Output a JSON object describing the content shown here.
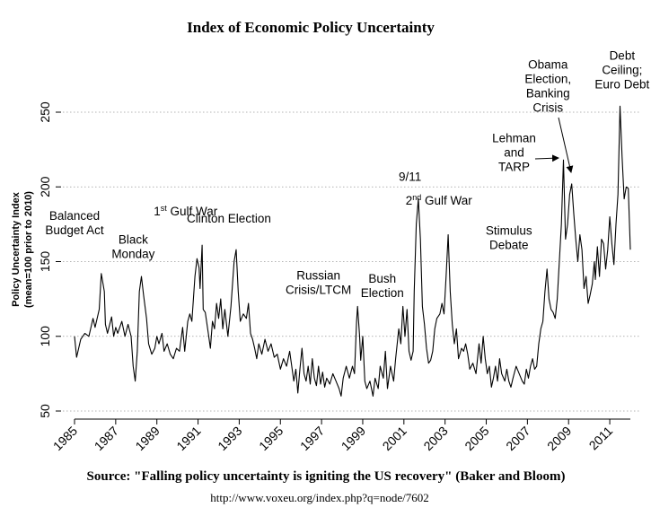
{
  "chart_data": {
    "type": "line",
    "title": "Index of Economic Policy Uncertainty",
    "ylabel": [
      "Policy Uncertainty Index",
      "(mean=100 prior to 2010)"
    ],
    "xlabel": "",
    "xlim": [
      1985,
      2012
    ],
    "ylim": [
      50,
      250
    ],
    "yticks": [
      50,
      100,
      150,
      200,
      250
    ],
    "ytick_labels": [
      "50",
      "100",
      "150",
      "200",
      "250"
    ],
    "xticks": [
      1985,
      1987,
      1989,
      1991,
      1993,
      1995,
      1997,
      1999,
      2001,
      2003,
      2005,
      2007,
      2009,
      2011
    ],
    "xtick_labels": [
      "1985",
      "1987",
      "1989",
      "1991",
      "1993",
      "1995",
      "1997",
      "1999",
      "2001",
      "2003",
      "2005",
      "2007",
      "2009",
      "2011"
    ],
    "grid": "horizontal dotted",
    "series": [
      {
        "name": "",
        "points": [
          [
            1985.0,
            100
          ],
          [
            1985.1,
            86
          ],
          [
            1985.3,
            98
          ],
          [
            1985.5,
            102
          ],
          [
            1985.7,
            100
          ],
          [
            1985.9,
            112
          ],
          [
            1986.0,
            106
          ],
          [
            1986.2,
            118
          ],
          [
            1986.3,
            142
          ],
          [
            1986.45,
            130
          ],
          [
            1986.5,
            108
          ],
          [
            1986.6,
            102
          ],
          [
            1986.8,
            113
          ],
          [
            1986.9,
            100
          ],
          [
            1987.0,
            106
          ],
          [
            1987.1,
            102
          ],
          [
            1987.3,
            110
          ],
          [
            1987.45,
            100
          ],
          [
            1987.6,
            108
          ],
          [
            1987.75,
            100
          ],
          [
            1987.85,
            80
          ],
          [
            1987.95,
            70
          ],
          [
            1988.05,
            90
          ],
          [
            1988.15,
            130
          ],
          [
            1988.25,
            140
          ],
          [
            1988.35,
            128
          ],
          [
            1988.5,
            112
          ],
          [
            1988.6,
            95
          ],
          [
            1988.75,
            88
          ],
          [
            1988.9,
            92
          ],
          [
            1989.0,
            100
          ],
          [
            1989.1,
            95
          ],
          [
            1989.25,
            102
          ],
          [
            1989.35,
            90
          ],
          [
            1989.5,
            95
          ],
          [
            1989.65,
            88
          ],
          [
            1989.8,
            85
          ],
          [
            1989.95,
            92
          ],
          [
            1990.1,
            90
          ],
          [
            1990.25,
            106
          ],
          [
            1990.35,
            90
          ],
          [
            1990.5,
            110
          ],
          [
            1990.6,
            115
          ],
          [
            1990.7,
            110
          ],
          [
            1990.85,
            140
          ],
          [
            1990.95,
            152
          ],
          [
            1991.05,
            146
          ],
          [
            1991.1,
            132
          ],
          [
            1991.2,
            161
          ],
          [
            1991.25,
            118
          ],
          [
            1991.35,
            116
          ],
          [
            1991.5,
            102
          ],
          [
            1991.6,
            92
          ],
          [
            1991.7,
            110
          ],
          [
            1991.8,
            105
          ],
          [
            1991.9,
            122
          ],
          [
            1992.0,
            112
          ],
          [
            1992.1,
            125
          ],
          [
            1992.2,
            105
          ],
          [
            1992.3,
            118
          ],
          [
            1992.45,
            100
          ],
          [
            1992.6,
            120
          ],
          [
            1992.75,
            150
          ],
          [
            1992.85,
            158
          ],
          [
            1992.95,
            130
          ],
          [
            1993.05,
            110
          ],
          [
            1993.2,
            115
          ],
          [
            1993.35,
            112
          ],
          [
            1993.45,
            122
          ],
          [
            1993.55,
            102
          ],
          [
            1993.65,
            98
          ],
          [
            1993.75,
            92
          ],
          [
            1993.85,
            85
          ],
          [
            1993.95,
            95
          ],
          [
            1994.1,
            88
          ],
          [
            1994.25,
            98
          ],
          [
            1994.4,
            90
          ],
          [
            1994.55,
            95
          ],
          [
            1994.7,
            86
          ],
          [
            1994.85,
            88
          ],
          [
            1995.0,
            78
          ],
          [
            1995.15,
            85
          ],
          [
            1995.3,
            80
          ],
          [
            1995.45,
            90
          ],
          [
            1995.55,
            80
          ],
          [
            1995.65,
            70
          ],
          [
            1995.75,
            78
          ],
          [
            1995.85,
            62
          ],
          [
            1995.95,
            78
          ],
          [
            1996.05,
            92
          ],
          [
            1996.15,
            75
          ],
          [
            1996.25,
            70
          ],
          [
            1996.35,
            80
          ],
          [
            1996.45,
            68
          ],
          [
            1996.55,
            85
          ],
          [
            1996.65,
            72
          ],
          [
            1996.75,
            67
          ],
          [
            1996.85,
            80
          ],
          [
            1996.95,
            68
          ],
          [
            1997.05,
            76
          ],
          [
            1997.15,
            66
          ],
          [
            1997.25,
            72
          ],
          [
            1997.4,
            68
          ],
          [
            1997.55,
            75
          ],
          [
            1997.7,
            70
          ],
          [
            1997.85,
            65
          ],
          [
            1997.95,
            60
          ],
          [
            1998.05,
            72
          ],
          [
            1998.2,
            80
          ],
          [
            1998.35,
            72
          ],
          [
            1998.5,
            80
          ],
          [
            1998.6,
            75
          ],
          [
            1998.7,
            110
          ],
          [
            1998.75,
            120
          ],
          [
            1998.85,
            100
          ],
          [
            1998.9,
            84
          ],
          [
            1999.0,
            100
          ],
          [
            1999.1,
            70
          ],
          [
            1999.2,
            65
          ],
          [
            1999.35,
            70
          ],
          [
            1999.5,
            60
          ],
          [
            1999.6,
            72
          ],
          [
            1999.75,
            65
          ],
          [
            1999.85,
            80
          ],
          [
            2000.0,
            72
          ],
          [
            2000.1,
            90
          ],
          [
            2000.2,
            65
          ],
          [
            2000.35,
            80
          ],
          [
            2000.5,
            70
          ],
          [
            2000.6,
            85
          ],
          [
            2000.75,
            105
          ],
          [
            2000.85,
            95
          ],
          [
            2000.95,
            120
          ],
          [
            2001.05,
            100
          ],
          [
            2001.15,
            118
          ],
          [
            2001.25,
            90
          ],
          [
            2001.35,
            84
          ],
          [
            2001.45,
            90
          ],
          [
            2001.5,
            130
          ],
          [
            2001.6,
            175
          ],
          [
            2001.7,
            192
          ],
          [
            2001.8,
            165
          ],
          [
            2001.9,
            120
          ],
          [
            2002.0,
            108
          ],
          [
            2002.1,
            92
          ],
          [
            2002.2,
            82
          ],
          [
            2002.3,
            84
          ],
          [
            2002.4,
            90
          ],
          [
            2002.5,
            105
          ],
          [
            2002.6,
            112
          ],
          [
            2002.75,
            115
          ],
          [
            2002.85,
            122
          ],
          [
            2002.95,
            115
          ],
          [
            2003.05,
            140
          ],
          [
            2003.15,
            168
          ],
          [
            2003.25,
            130
          ],
          [
            2003.35,
            108
          ],
          [
            2003.45,
            95
          ],
          [
            2003.55,
            105
          ],
          [
            2003.65,
            85
          ],
          [
            2003.8,
            92
          ],
          [
            2003.9,
            90
          ],
          [
            2004.0,
            95
          ],
          [
            2004.1,
            88
          ],
          [
            2004.2,
            78
          ],
          [
            2004.35,
            82
          ],
          [
            2004.5,
            75
          ],
          [
            2004.65,
            95
          ],
          [
            2004.75,
            82
          ],
          [
            2004.85,
            100
          ],
          [
            2004.95,
            85
          ],
          [
            2005.05,
            75
          ],
          [
            2005.15,
            80
          ],
          [
            2005.25,
            66
          ],
          [
            2005.35,
            72
          ],
          [
            2005.45,
            80
          ],
          [
            2005.55,
            70
          ],
          [
            2005.65,
            85
          ],
          [
            2005.75,
            75
          ],
          [
            2005.9,
            70
          ],
          [
            2006.0,
            78
          ],
          [
            2006.1,
            70
          ],
          [
            2006.2,
            66
          ],
          [
            2006.3,
            72
          ],
          [
            2006.45,
            80
          ],
          [
            2006.6,
            75
          ],
          [
            2006.75,
            70
          ],
          [
            2006.85,
            68
          ],
          [
            2006.95,
            78
          ],
          [
            2007.05,
            72
          ],
          [
            2007.15,
            80
          ],
          [
            2007.25,
            85
          ],
          [
            2007.35,
            78
          ],
          [
            2007.45,
            80
          ],
          [
            2007.55,
            95
          ],
          [
            2007.65,
            105
          ],
          [
            2007.75,
            110
          ],
          [
            2007.85,
            130
          ],
          [
            2007.95,
            145
          ],
          [
            2008.05,
            125
          ],
          [
            2008.15,
            118
          ],
          [
            2008.25,
            116
          ],
          [
            2008.35,
            112
          ],
          [
            2008.45,
            125
          ],
          [
            2008.55,
            150
          ],
          [
            2008.65,
            175
          ],
          [
            2008.75,
            218
          ],
          [
            2008.85,
            165
          ],
          [
            2008.95,
            175
          ],
          [
            2009.05,
            195
          ],
          [
            2009.15,
            202
          ],
          [
            2009.25,
            182
          ],
          [
            2009.35,
            165
          ],
          [
            2009.45,
            150
          ],
          [
            2009.55,
            168
          ],
          [
            2009.65,
            158
          ],
          [
            2009.75,
            132
          ],
          [
            2009.85,
            140
          ],
          [
            2009.95,
            122
          ],
          [
            2010.05,
            128
          ],
          [
            2010.15,
            135
          ],
          [
            2010.25,
            150
          ],
          [
            2010.3,
            138
          ],
          [
            2010.4,
            160
          ],
          [
            2010.5,
            140
          ],
          [
            2010.6,
            165
          ],
          [
            2010.7,
            162
          ],
          [
            2010.8,
            145
          ],
          [
            2010.9,
            158
          ],
          [
            2011.0,
            180
          ],
          [
            2011.1,
            162
          ],
          [
            2011.2,
            148
          ],
          [
            2011.3,
            175
          ],
          [
            2011.4,
            195
          ],
          [
            2011.5,
            254
          ],
          [
            2011.6,
            220
          ],
          [
            2011.7,
            192
          ],
          [
            2011.8,
            200
          ],
          [
            2011.9,
            199
          ],
          [
            2012.0,
            158
          ]
        ]
      }
    ],
    "annotations": [
      {
        "lines": [
          "Balanced",
          "Budget Act"
        ],
        "x": 1985.0,
        "y": 178
      },
      {
        "lines": [
          "Black",
          "Monday"
        ],
        "x": 1987.85,
        "y": 162
      },
      {
        "lines": [
          "1st Gulf War"
        ],
        "x": 1990.4,
        "y": 181
      },
      {
        "lines": [
          "Clinton Election"
        ],
        "x": 1992.5,
        "y": 176
      },
      {
        "lines": [
          "Russian",
          "Crisis/LTCM"
        ],
        "x": 1996.85,
        "y": 138
      },
      {
        "lines": [
          "Bush",
          "Election"
        ],
        "x": 1999.95,
        "y": 136
      },
      {
        "lines": [
          "9/11"
        ],
        "x": 2001.3,
        "y": 204
      },
      {
        "lines": [
          "2nd Gulf War"
        ],
        "x": 2002.7,
        "y": 188
      },
      {
        "lines": [
          "Stimulus",
          "Debate"
        ],
        "x": 2006.1,
        "y": 168
      },
      {
        "lines": [
          "Lehman",
          "and",
          "TARP"
        ],
        "x": 2006.35,
        "y": 230
      },
      {
        "lines": [
          "Obama",
          "Election,",
          "Banking",
          "Crisis"
        ],
        "x": 2008.0,
        "y": 279
      },
      {
        "lines": [
          "Debt",
          "Ceiling;",
          "Euro Debt"
        ],
        "x": 2011.6,
        "y": 285
      }
    ],
    "source": "Source: \"Falling policy uncertainty is igniting the US recovery\" (Baker and Bloom)",
    "url": "http://www.voxeu.org/index.php?q=node/7602"
  }
}
